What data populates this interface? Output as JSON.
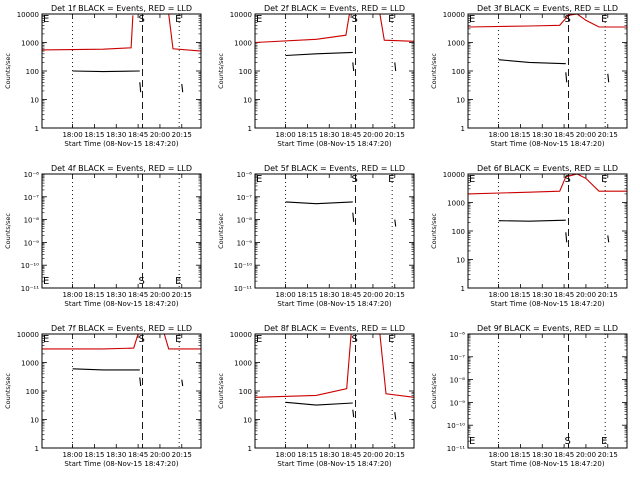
{
  "chart_data": [
    {
      "type": "line",
      "title": "Det 1f BLACK = Events, RED = LLD",
      "xlabel": "Start Time (08-Nov-15 18:47:20)",
      "ylabel": "Counts/sec",
      "yscale": "log",
      "ylim": [
        1,
        10000
      ],
      "ytick_labels": [
        "1",
        "10",
        "100",
        "1000",
        "10000"
      ],
      "xtick_labels": [
        "18:00",
        "18:15",
        "18:30",
        "18:45",
        "20:00",
        "20:15"
      ],
      "markers": [
        {
          "label": "S",
          "x": 18.75
        },
        {
          "label": "E",
          "x": 19.17
        },
        {
          "label": "E",
          "x": 17.6
        }
      ],
      "series": [
        {
          "name": "BLACK = Events",
          "color": "#000000",
          "segments": [
            [
              [
                17.95,
                100
              ],
              [
                18.3,
                95
              ],
              [
                18.72,
                100
              ]
            ],
            [
              [
                18.72,
                40
              ],
              [
                18.73,
                18
              ]
            ],
            [
              [
                19.2,
                35
              ],
              [
                19.21,
                18
              ]
            ]
          ]
        },
        {
          "name": "RED = LLD",
          "color": "#cc0000",
          "segments": [
            [
              [
                17.6,
                550
              ],
              [
                18.3,
                580
              ],
              [
                18.62,
                650
              ],
              [
                18.64,
                9000
              ]
            ],
            [
              [
                19.05,
                10000
              ],
              [
                19.1,
                600
              ],
              [
                19.42,
                500
              ]
            ]
          ]
        }
      ]
    },
    {
      "type": "line",
      "title": "Det 2f BLACK = Events, RED = LLD",
      "xlabel": "Start Time (08-Nov-15 18:47:20)",
      "ylabel": "Counts/sec",
      "yscale": "log",
      "ylim": [
        1,
        10000
      ],
      "ytick_labels": [
        "1",
        "10",
        "100",
        "1000",
        "10000"
      ],
      "xtick_labels": [
        "18:00",
        "18:15",
        "18:30",
        "18:45",
        "20:00",
        "20:15"
      ],
      "markers": [
        {
          "label": "S",
          "x": 18.75
        },
        {
          "label": "E",
          "x": 19.17
        },
        {
          "label": "E",
          "x": 17.6
        }
      ],
      "series": [
        {
          "name": "BLACK = Events",
          "color": "#000000",
          "segments": [
            [
              [
                17.95,
                350
              ],
              [
                18.3,
                400
              ],
              [
                18.72,
                450
              ]
            ],
            [
              [
                18.72,
                200
              ],
              [
                18.73,
                100
              ]
            ],
            [
              [
                19.2,
                200
              ],
              [
                19.21,
                100
              ]
            ]
          ]
        },
        {
          "name": "RED = LLD",
          "color": "#cc0000",
          "segments": [
            [
              [
                17.6,
                1000
              ],
              [
                18.3,
                1300
              ],
              [
                18.64,
                1800
              ],
              [
                18.68,
                10000
              ],
              [
                19.03,
                10000
              ],
              [
                19.08,
                1200
              ],
              [
                19.42,
                1100
              ]
            ]
          ]
        }
      ]
    },
    {
      "type": "line",
      "title": "Det 3f BLACK = Events, RED = LLD",
      "xlabel": "Start Time (08-Nov-15 18:47:20)",
      "ylabel": "Counts/sec",
      "yscale": "log",
      "ylim": [
        1,
        10000
      ],
      "ytick_labels": [
        "1",
        "10",
        "100",
        "1000",
        "10000"
      ],
      "xtick_labels": [
        "18:00",
        "18:15",
        "18:30",
        "18:45",
        "20:00",
        "20:15"
      ],
      "markers": [
        {
          "label": "S",
          "x": 18.75
        },
        {
          "label": "E",
          "x": 19.17
        },
        {
          "label": "E",
          "x": 17.6
        }
      ],
      "series": [
        {
          "name": "BLACK = Events",
          "color": "#000000",
          "segments": [
            [
              [
                17.95,
                250
              ],
              [
                18.3,
                200
              ],
              [
                18.72,
                180
              ]
            ],
            [
              [
                18.72,
                90
              ],
              [
                18.73,
                40
              ]
            ],
            [
              [
                19.2,
                80
              ],
              [
                19.21,
                40
              ]
            ]
          ]
        },
        {
          "name": "RED = LLD",
          "color": "#cc0000",
          "segments": [
            [
              [
                17.6,
                3500
              ],
              [
                18.3,
                3800
              ],
              [
                18.65,
                4000
              ],
              [
                18.75,
                9000
              ],
              [
                18.85,
                10000
              ],
              [
                18.95,
                6000
              ],
              [
                19.1,
                3500
              ],
              [
                19.42,
                3500
              ]
            ]
          ]
        }
      ]
    },
    {
      "type": "line",
      "title": "Det 4f BLACK = Events, RED = LLD",
      "xlabel": "Start Time (08-Nov-15 18:47:20)",
      "ylabel": "Counts/sec",
      "yscale": "log",
      "ylim": [
        1e-11,
        1e-06
      ],
      "ytick_labels": [
        "10⁻¹¹",
        "10⁻¹⁰",
        "10⁻⁹",
        "10⁻⁸",
        "10⁻⁷",
        "10⁻⁶"
      ],
      "xtick_labels": [
        "18:00",
        "18:15",
        "18:30",
        "18:45",
        "20:00",
        "20:15"
      ],
      "markers": [
        {
          "label": "S",
          "x": 18.75
        },
        {
          "label": "E",
          "x": 19.17
        },
        {
          "label": "E",
          "x": 17.6
        }
      ],
      "series": []
    },
    {
      "type": "line",
      "title": "Det 5f BLACK = Events, RED = LLD",
      "xlabel": "Start Time (08-Nov-15 18:47:20)",
      "ylabel": "Counts/sec",
      "yscale": "log",
      "ylim": [
        1e-11,
        1e-06
      ],
      "ytick_labels": [
        "10⁻¹¹",
        "10⁻¹⁰",
        "10⁻⁹",
        "10⁻⁸",
        "10⁻⁷",
        "10⁻⁶"
      ],
      "xtick_labels": [
        "18:00",
        "18:15",
        "18:30",
        "18:45",
        "20:00",
        "20:15"
      ],
      "markers": [
        {
          "label": "S",
          "x": 18.75
        },
        {
          "label": "E",
          "x": 19.17
        },
        {
          "label": "E",
          "x": 17.6
        }
      ],
      "series": [
        {
          "name": "BLACK = Events",
          "color": "#000000",
          "segments": [
            [
              [
                17.95,
                6e-08
              ],
              [
                18.3,
                5e-08
              ],
              [
                18.72,
                6e-08
              ]
            ],
            [
              [
                18.72,
                2e-08
              ],
              [
                18.73,
                8e-09
              ]
            ],
            [
              [
                19.2,
                1e-08
              ],
              [
                19.21,
                5e-09
              ]
            ]
          ]
        },
        {
          "name": "RED = LLD",
          "color": "#cc0000",
          "segments": [
            [
              [
                18.72,
                1e-06
              ],
              [
                19.05,
                1e-06
              ]
            ]
          ]
        }
      ]
    },
    {
      "type": "line",
      "title": "Det 6f BLACK = Events, RED = LLD",
      "xlabel": "Start Time (08-Nov-15 18:47:20)",
      "ylabel": "Counts/sec",
      "yscale": "log",
      "ylim": [
        1,
        10000
      ],
      "ytick_labels": [
        "1",
        "10",
        "100",
        "1000",
        "10000"
      ],
      "xtick_labels": [
        "18:00",
        "18:15",
        "18:30",
        "18:45",
        "20:00",
        "20:15"
      ],
      "markers": [
        {
          "label": "S",
          "x": 18.75
        },
        {
          "label": "E",
          "x": 19.17
        },
        {
          "label": "E",
          "x": 17.6
        }
      ],
      "series": [
        {
          "name": "BLACK = Events",
          "color": "#000000",
          "segments": [
            [
              [
                17.95,
                230
              ],
              [
                18.3,
                220
              ],
              [
                18.72,
                240
              ]
            ],
            [
              [
                18.72,
                90
              ],
              [
                18.73,
                40
              ]
            ],
            [
              [
                19.2,
                70
              ],
              [
                19.21,
                40
              ]
            ]
          ]
        },
        {
          "name": "RED = LLD",
          "color": "#cc0000",
          "segments": [
            [
              [
                17.6,
                2000
              ],
              [
                18.3,
                2300
              ],
              [
                18.65,
                2500
              ],
              [
                18.72,
                8000
              ],
              [
                18.85,
                10000
              ],
              [
                18.95,
                7000
              ],
              [
                19.1,
                2500
              ],
              [
                19.42,
                2500
              ]
            ]
          ]
        }
      ]
    },
    {
      "type": "line",
      "title": "Det 7f BLACK = Events, RED = LLD",
      "xlabel": "Start Time (08-Nov-15 18:47:20)",
      "ylabel": "Counts/sec",
      "yscale": "log",
      "ylim": [
        1,
        10000
      ],
      "ytick_labels": [
        "1",
        "10",
        "100",
        "1000",
        "10000"
      ],
      "xtick_labels": [
        "18:00",
        "18:15",
        "18:30",
        "18:45",
        "20:00",
        "20:15"
      ],
      "markers": [
        {
          "label": "S",
          "x": 18.75
        },
        {
          "label": "E",
          "x": 19.17
        },
        {
          "label": "E",
          "x": 17.6
        }
      ],
      "series": [
        {
          "name": "BLACK = Events",
          "color": "#000000",
          "segments": [
            [
              [
                17.95,
                600
              ],
              [
                18.3,
                550
              ],
              [
                18.72,
                550
              ]
            ],
            [
              [
                18.72,
                300
              ],
              [
                18.73,
                150
              ]
            ],
            [
              [
                19.2,
                250
              ],
              [
                19.21,
                150
              ]
            ]
          ]
        },
        {
          "name": "RED = LLD",
          "color": "#cc0000",
          "segments": [
            [
              [
                17.6,
                3000
              ],
              [
                18.3,
                3000
              ],
              [
                18.65,
                3200
              ],
              [
                18.7,
                10000
              ],
              [
                19.0,
                10000
              ],
              [
                19.05,
                3000
              ],
              [
                19.42,
                3000
              ]
            ]
          ]
        }
      ]
    },
    {
      "type": "line",
      "title": "Det 8f BLACK = Events, RED = LLD",
      "xlabel": "Start Time (08-Nov-15 18:47:20)",
      "ylabel": "Counts/sec",
      "yscale": "log",
      "ylim": [
        1,
        10000
      ],
      "ytick_labels": [
        "1",
        "10",
        "100",
        "1000",
        "10000"
      ],
      "xtick_labels": [
        "18:00",
        "18:15",
        "18:30",
        "18:45",
        "20:00",
        "20:15"
      ],
      "markers": [
        {
          "label": "S",
          "x": 18.75
        },
        {
          "label": "E",
          "x": 19.17
        },
        {
          "label": "E",
          "x": 17.6
        }
      ],
      "series": [
        {
          "name": "BLACK = Events",
          "color": "#000000",
          "segments": [
            [
              [
                17.95,
                40
              ],
              [
                18.3,
                32
              ],
              [
                18.72,
                38
              ]
            ],
            [
              [
                18.72,
                22
              ],
              [
                18.73,
                12
              ]
            ],
            [
              [
                19.2,
                18
              ],
              [
                19.21,
                10
              ]
            ]
          ]
        },
        {
          "name": "RED = LLD",
          "color": "#cc0000",
          "segments": [
            [
              [
                17.6,
                60
              ],
              [
                18.3,
                70
              ],
              [
                18.65,
                120
              ],
              [
                18.7,
                10000
              ],
              [
                19.03,
                10000
              ],
              [
                19.1,
                80
              ],
              [
                19.42,
                60
              ]
            ]
          ]
        }
      ]
    },
    {
      "type": "line",
      "title": "Det 9f BLACK = Events, RED = LLD",
      "xlabel": "Start Time (08-Nov-15 18:47:20)",
      "ylabel": "Counts/sec",
      "yscale": "log",
      "ylim": [
        1e-11,
        1e-06
      ],
      "ytick_labels": [
        "10⁻¹¹",
        "10⁻¹⁰",
        "10⁻⁹",
        "10⁻⁸",
        "10⁻⁷",
        "10⁻⁶"
      ],
      "xtick_labels": [
        "18:00",
        "18:15",
        "18:30",
        "18:45",
        "20:00",
        "20:15"
      ],
      "markers": [
        {
          "label": "S",
          "x": 18.75
        },
        {
          "label": "E",
          "x": 19.17
        },
        {
          "label": "E",
          "x": 17.6
        }
      ],
      "series": []
    }
  ]
}
